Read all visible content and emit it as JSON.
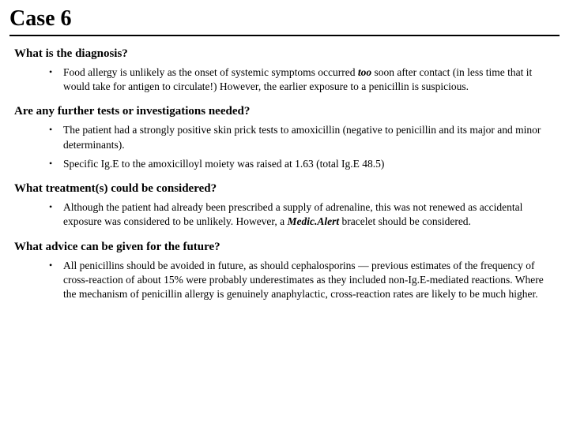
{
  "title": "Case 6",
  "sections": [
    {
      "heading": "What is the diagnosis?",
      "items": [
        {
          "pre": "Food allergy is unlikely as the onset of systemic symptoms occurred ",
          "em": "too",
          "post": " soon after contact (in less time that it would take for antigen to circulate!) However, the earlier exposure to a penicillin is suspicious."
        }
      ]
    },
    {
      "heading": "Are any further tests or investigations needed?",
      "items": [
        {
          "pre": "The patient had a strongly positive skin prick tests to amoxicillin (negative to penicillin and its major and minor determinants).",
          "em": "",
          "post": ""
        },
        {
          "pre": "Specific Ig.E to the amoxicilloyl moiety was raised at 1.63 (total Ig.E 48.5)",
          "em": "",
          "post": ""
        }
      ]
    },
    {
      "heading": "What treatment(s) could be considered?",
      "items": [
        {
          "pre": "Although the patient had already been prescribed a supply of adrenaline, this was not renewed as accidental exposure was considered to be unlikely. However, a ",
          "em": "Medic.Alert",
          "post": " bracelet should be considered."
        }
      ]
    },
    {
      "heading": "What advice can be given for the future?",
      "items": [
        {
          "pre": "All penicillins should be avoided in future, as should cephalosporins — previous estimates of the frequency of cross-reaction of about 15% were probably underestimates as they included non-Ig.E-mediated reactions. Where the mechanism of penicillin allergy is genuinely anaphylactic, cross-reaction rates are likely to be much higher.",
          "em": "",
          "post": ""
        }
      ]
    }
  ]
}
